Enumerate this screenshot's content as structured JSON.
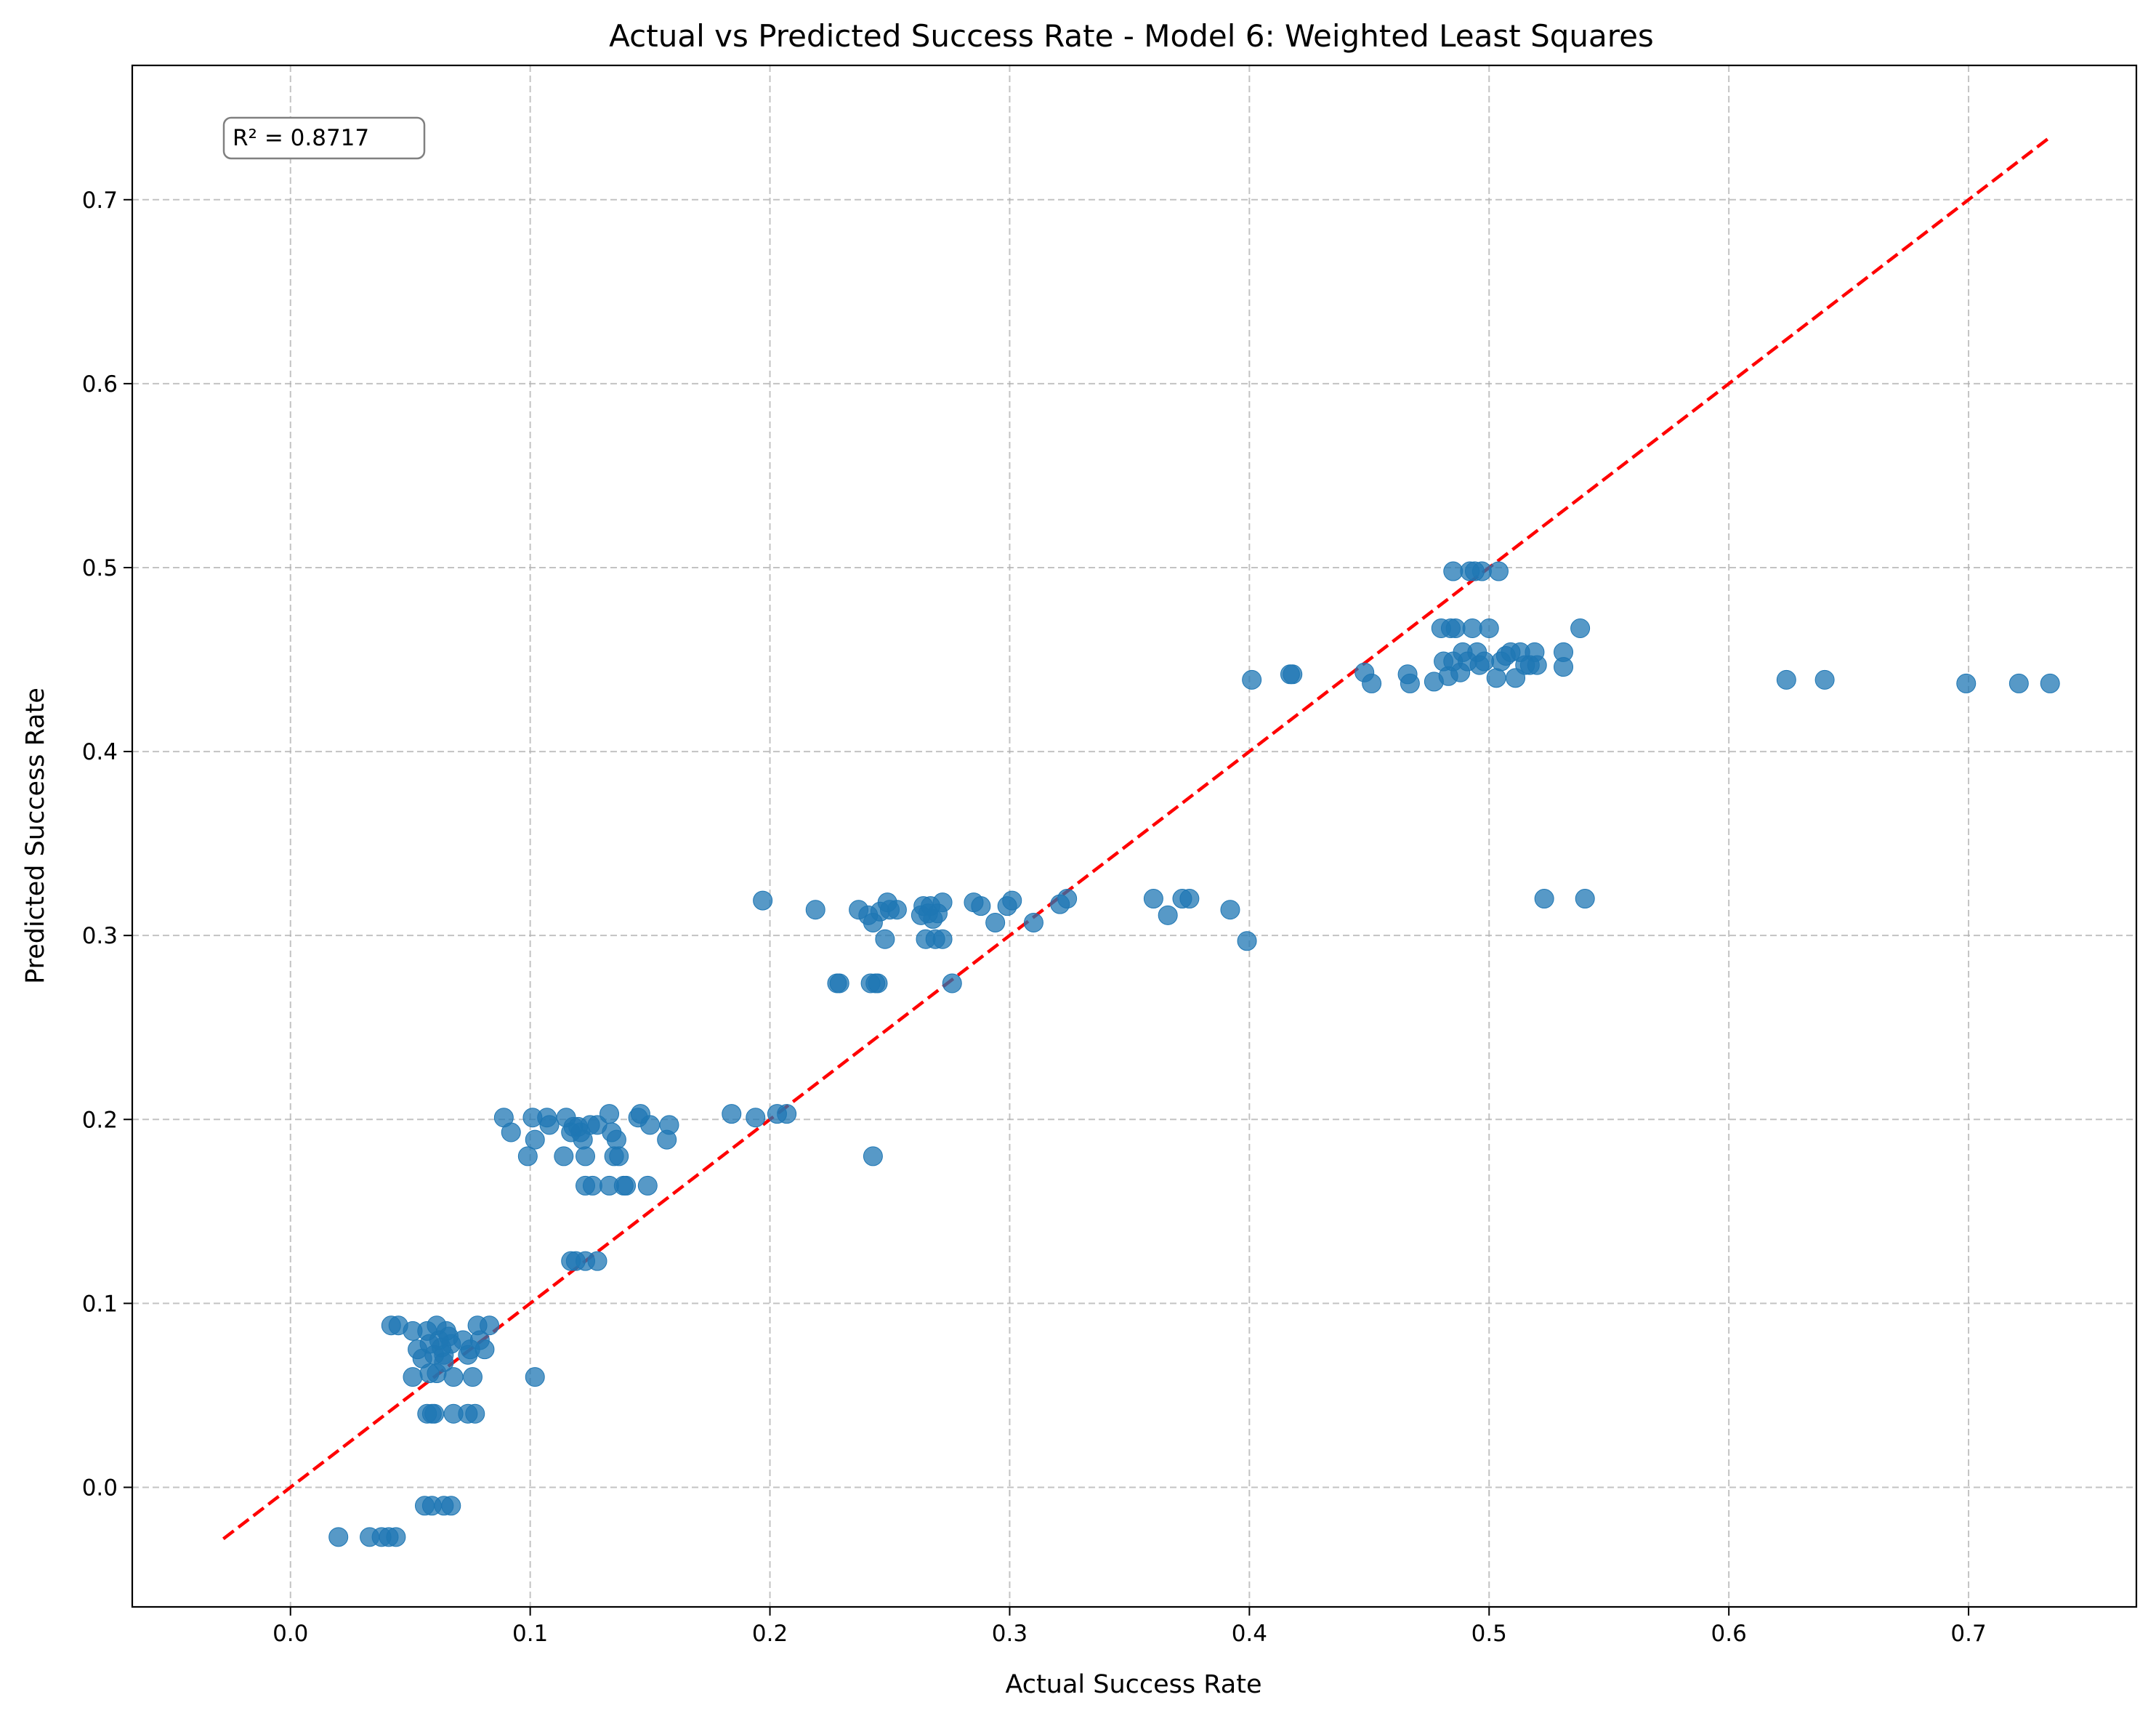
{
  "chart_data": {
    "type": "scatter",
    "title": "Actual vs Predicted Success Rate - Model 6: Weighted Least Squares",
    "xlabel": "Actual Success Rate",
    "ylabel": "Predicted Success Rate",
    "xlim": [
      -0.066,
      0.77
    ],
    "ylim": [
      -0.065,
      0.773
    ],
    "xticks": [
      "0.0",
      "0.1",
      "0.2",
      "0.3",
      "0.4",
      "0.5",
      "0.6",
      "0.7"
    ],
    "yticks": [
      "0.0",
      "0.1",
      "0.2",
      "0.3",
      "0.4",
      "0.5",
      "0.6",
      "0.7"
    ],
    "grid": true,
    "annotation": "R² = 0.8717",
    "point_color": "#1f77b4",
    "line_color": "#ff0000",
    "reference_line": {
      "from": [
        -0.028,
        -0.028
      ],
      "to": [
        0.733,
        0.733
      ],
      "style": "dashed"
    },
    "points": [
      [
        0.02,
        -0.027
      ],
      [
        0.033,
        -0.027
      ],
      [
        0.038,
        -0.027
      ],
      [
        0.041,
        -0.027
      ],
      [
        0.044,
        -0.027
      ],
      [
        0.056,
        -0.01
      ],
      [
        0.059,
        -0.01
      ],
      [
        0.064,
        -0.01
      ],
      [
        0.067,
        -0.01
      ],
      [
        0.042,
        0.088
      ],
      [
        0.045,
        0.088
      ],
      [
        0.051,
        0.085
      ],
      [
        0.053,
        0.075
      ],
      [
        0.055,
        0.07
      ],
      [
        0.057,
        0.085
      ],
      [
        0.058,
        0.078
      ],
      [
        0.06,
        0.072
      ],
      [
        0.061,
        0.088
      ],
      [
        0.062,
        0.08
      ],
      [
        0.063,
        0.076
      ],
      [
        0.064,
        0.068
      ],
      [
        0.065,
        0.085
      ],
      [
        0.066,
        0.082
      ],
      [
        0.067,
        0.078
      ],
      [
        0.058,
        0.062
      ],
      [
        0.061,
        0.062
      ],
      [
        0.064,
        0.072
      ],
      [
        0.068,
        0.06
      ],
      [
        0.072,
        0.08
      ],
      [
        0.074,
        0.072
      ],
      [
        0.076,
        0.06
      ],
      [
        0.051,
        0.06
      ],
      [
        0.057,
        0.04
      ],
      [
        0.059,
        0.04
      ],
      [
        0.06,
        0.04
      ],
      [
        0.068,
        0.04
      ],
      [
        0.074,
        0.04
      ],
      [
        0.077,
        0.04
      ],
      [
        0.075,
        0.075
      ],
      [
        0.078,
        0.088
      ],
      [
        0.079,
        0.08
      ],
      [
        0.081,
        0.075
      ],
      [
        0.083,
        0.088
      ],
      [
        0.102,
        0.06
      ],
      [
        0.089,
        0.201
      ],
      [
        0.092,
        0.193
      ],
      [
        0.099,
        0.18
      ],
      [
        0.101,
        0.201
      ],
      [
        0.102,
        0.189
      ],
      [
        0.107,
        0.201
      ],
      [
        0.108,
        0.197
      ],
      [
        0.114,
        0.18
      ],
      [
        0.115,
        0.201
      ],
      [
        0.117,
        0.193
      ],
      [
        0.118,
        0.196
      ],
      [
        0.12,
        0.196
      ],
      [
        0.121,
        0.193
      ],
      [
        0.122,
        0.189
      ],
      [
        0.123,
        0.18
      ],
      [
        0.125,
        0.197
      ],
      [
        0.128,
        0.197
      ],
      [
        0.133,
        0.203
      ],
      [
        0.134,
        0.193
      ],
      [
        0.135,
        0.18
      ],
      [
        0.136,
        0.189
      ],
      [
        0.137,
        0.18
      ],
      [
        0.145,
        0.201
      ],
      [
        0.146,
        0.203
      ],
      [
        0.15,
        0.197
      ],
      [
        0.157,
        0.189
      ],
      [
        0.158,
        0.197
      ],
      [
        0.123,
        0.164
      ],
      [
        0.126,
        0.164
      ],
      [
        0.133,
        0.164
      ],
      [
        0.139,
        0.164
      ],
      [
        0.14,
        0.164
      ],
      [
        0.149,
        0.164
      ],
      [
        0.117,
        0.123
      ],
      [
        0.119,
        0.123
      ],
      [
        0.123,
        0.123
      ],
      [
        0.128,
        0.123
      ],
      [
        0.184,
        0.203
      ],
      [
        0.194,
        0.201
      ],
      [
        0.203,
        0.203
      ],
      [
        0.207,
        0.203
      ],
      [
        0.197,
        0.319
      ],
      [
        0.219,
        0.314
      ],
      [
        0.228,
        0.274
      ],
      [
        0.229,
        0.274
      ],
      [
        0.242,
        0.274
      ],
      [
        0.244,
        0.274
      ],
      [
        0.245,
        0.274
      ],
      [
        0.276,
        0.274
      ],
      [
        0.243,
        0.18
      ],
      [
        0.237,
        0.314
      ],
      [
        0.241,
        0.311
      ],
      [
        0.243,
        0.307
      ],
      [
        0.246,
        0.313
      ],
      [
        0.248,
        0.298
      ],
      [
        0.249,
        0.318
      ],
      [
        0.25,
        0.314
      ],
      [
        0.253,
        0.314
      ],
      [
        0.263,
        0.311
      ],
      [
        0.264,
        0.316
      ],
      [
        0.265,
        0.298
      ],
      [
        0.266,
        0.312
      ],
      [
        0.267,
        0.316
      ],
      [
        0.268,
        0.309
      ],
      [
        0.269,
        0.298
      ],
      [
        0.27,
        0.312
      ],
      [
        0.272,
        0.298
      ],
      [
        0.272,
        0.318
      ],
      [
        0.285,
        0.318
      ],
      [
        0.288,
        0.316
      ],
      [
        0.294,
        0.307
      ],
      [
        0.299,
        0.316
      ],
      [
        0.301,
        0.319
      ],
      [
        0.31,
        0.307
      ],
      [
        0.321,
        0.317
      ],
      [
        0.324,
        0.32
      ],
      [
        0.36,
        0.32
      ],
      [
        0.366,
        0.311
      ],
      [
        0.372,
        0.32
      ],
      [
        0.375,
        0.32
      ],
      [
        0.392,
        0.314
      ],
      [
        0.399,
        0.297
      ],
      [
        0.401,
        0.439
      ],
      [
        0.417,
        0.442
      ],
      [
        0.418,
        0.442
      ],
      [
        0.448,
        0.443
      ],
      [
        0.451,
        0.437
      ],
      [
        0.466,
        0.442
      ],
      [
        0.467,
        0.437
      ],
      [
        0.477,
        0.438
      ],
      [
        0.48,
        0.467
      ],
      [
        0.481,
        0.449
      ],
      [
        0.483,
        0.441
      ],
      [
        0.484,
        0.467
      ],
      [
        0.485,
        0.449
      ],
      [
        0.486,
        0.467
      ],
      [
        0.488,
        0.443
      ],
      [
        0.489,
        0.454
      ],
      [
        0.491,
        0.449
      ],
      [
        0.493,
        0.467
      ],
      [
        0.495,
        0.454
      ],
      [
        0.496,
        0.447
      ],
      [
        0.498,
        0.449
      ],
      [
        0.5,
        0.467
      ],
      [
        0.503,
        0.44
      ],
      [
        0.505,
        0.449
      ],
      [
        0.507,
        0.452
      ],
      [
        0.509,
        0.454
      ],
      [
        0.511,
        0.44
      ],
      [
        0.513,
        0.454
      ],
      [
        0.515,
        0.447
      ],
      [
        0.517,
        0.447
      ],
      [
        0.519,
        0.454
      ],
      [
        0.52,
        0.447
      ],
      [
        0.531,
        0.454
      ],
      [
        0.531,
        0.446
      ],
      [
        0.538,
        0.467
      ],
      [
        0.485,
        0.498
      ],
      [
        0.492,
        0.498
      ],
      [
        0.494,
        0.498
      ],
      [
        0.497,
        0.498
      ],
      [
        0.504,
        0.498
      ],
      [
        0.523,
        0.32
      ],
      [
        0.54,
        0.32
      ],
      [
        0.624,
        0.439
      ],
      [
        0.64,
        0.439
      ],
      [
        0.699,
        0.437
      ],
      [
        0.721,
        0.437
      ],
      [
        0.734,
        0.437
      ]
    ]
  }
}
